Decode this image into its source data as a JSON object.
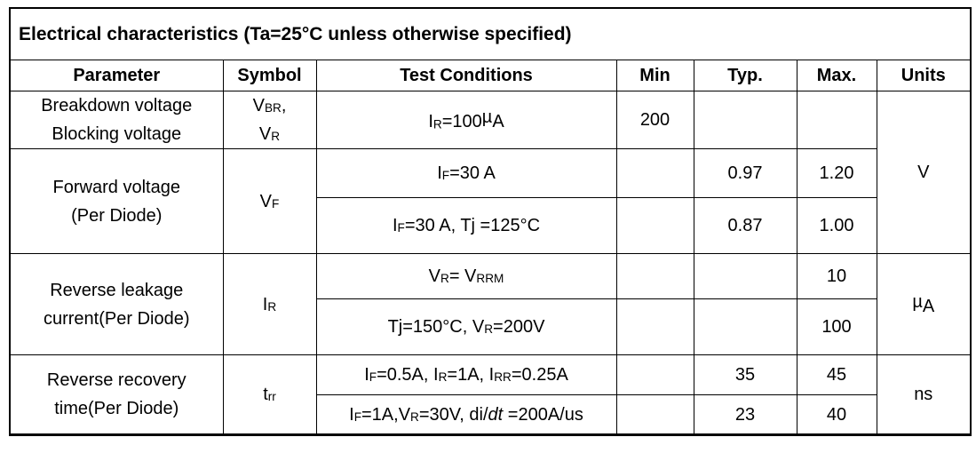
{
  "title": "Electrical characteristics (Ta=25°C unless otherwise specified)",
  "columns": {
    "parameter": "Parameter",
    "symbol": "Symbol",
    "conditions": "Test Conditions",
    "min": "Min",
    "typ": "Typ.",
    "max": "Max.",
    "units": "Units"
  },
  "groups": [
    {
      "parameter": [
        "Breakdown voltage",
        "Blocking voltage"
      ],
      "symbol": [
        "V~BR~,",
        "V~R~"
      ],
      "rows": [
        {
          "conditions": "I~R~=100^µ^A",
          "min": "200",
          "typ": "",
          "max": ""
        }
      ]
    },
    {
      "parameter": [
        "Forward voltage",
        "(Per Diode)"
      ],
      "symbol": [
        "V~F~"
      ],
      "rows": [
        {
          "conditions": "I~F~=30 A",
          "min": "",
          "typ": "0.97",
          "max": "1.20"
        },
        {
          "conditions": "I~F~=30 A, Tj =125°C",
          "min": "",
          "typ": "0.87",
          "max": "1.00"
        }
      ]
    },
    {
      "parameter": [
        "Reverse leakage",
        "current(Per Diode)"
      ],
      "symbol": [
        "I~R~"
      ],
      "rows": [
        {
          "conditions": "V~R~= V~RRM~",
          "min": "",
          "typ": "",
          "max": "10"
        },
        {
          "conditions": "Tj=150°C, V~R~=200V",
          "min": "",
          "typ": "",
          "max": "100"
        }
      ]
    },
    {
      "parameter": [
        "Reverse recovery",
        "time(Per Diode)"
      ],
      "symbol": [
        "t~rr~"
      ],
      "rows": [
        {
          "conditions": "I~F~=0.5A, I~R~=1A, I~RR~=0.25A",
          "min": "",
          "typ": "35",
          "max": "45"
        },
        {
          "conditions": "I~F~=1A,V~R~=30V, di/*dt* =200A/us",
          "min": "",
          "typ": "23",
          "max": "40"
        }
      ]
    }
  ],
  "units": [
    "V",
    "^µ^A",
    "ns"
  ]
}
